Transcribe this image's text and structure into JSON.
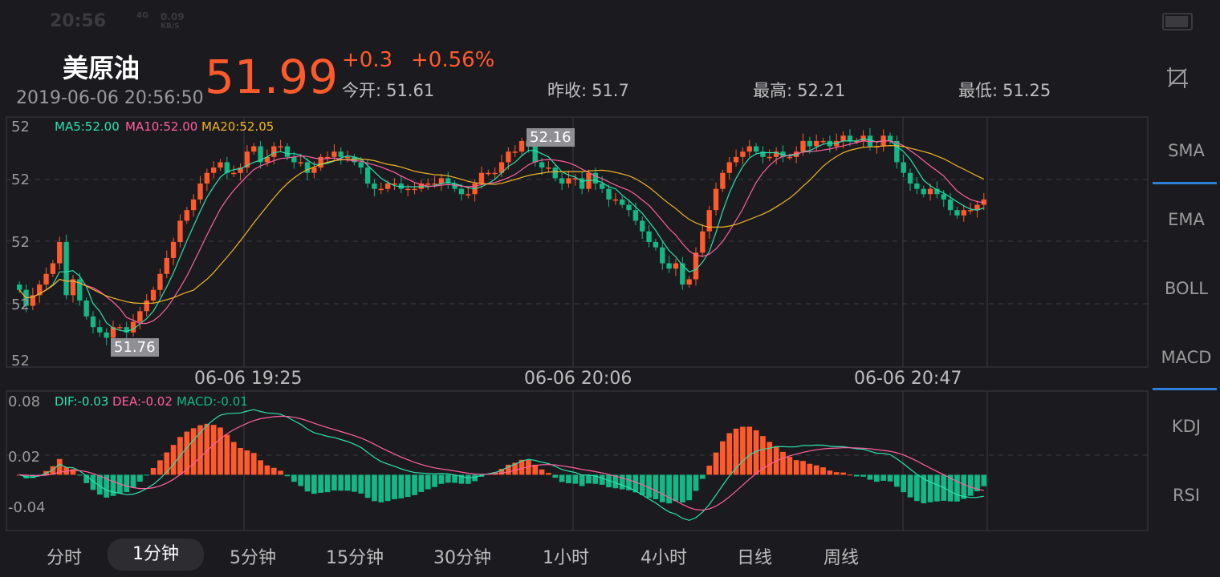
{
  "status_bar": {
    "time": "20:56",
    "net_label": "4G",
    "speed": "0.09",
    "speed_unit": "KB/S"
  },
  "header": {
    "title": "美原油",
    "datetime": "2019-06-06 20:56:50",
    "price": "51.99",
    "change": "+0.3",
    "change_pct": "+0.56%",
    "stats": [
      {
        "label": "今开:",
        "value": "51.61"
      },
      {
        "label": "昨收:",
        "value": "51.7"
      },
      {
        "label": "最高:",
        "value": "52.21"
      },
      {
        "label": "最低:",
        "value": "51.25"
      }
    ]
  },
  "indicators": [
    "SMA",
    "EMA",
    "BOLL",
    "MACD",
    "KDJ",
    "RSI"
  ],
  "active_indicators": [
    "SMA",
    "MACD"
  ],
  "tabs": [
    "分时",
    "1分钟",
    "5分钟",
    "15分钟",
    "30分钟",
    "1小时",
    "4小时",
    "日线",
    "周线"
  ],
  "active_tab": "1分钟",
  "colors": {
    "up": "#ff5a2c",
    "down": "#12b886",
    "ma5": "#2de0b0",
    "ma10": "#ff5fa2",
    "ma20": "#f0b428",
    "accent": "#2e7fd8"
  },
  "chart_data": [
    {
      "type": "candlestick",
      "legend": {
        "ma5": "MA5:52.00",
        "ma10": "MA10:52.00",
        "ma20": "MA20:52.05"
      },
      "y_tick_labels": [
        "52",
        "52",
        "52",
        "52",
        "52"
      ],
      "x_tick_labels": [
        "06-06 19:25",
        "06-06 20:06",
        "06-06 20:47"
      ],
      "max_label": "52.16",
      "min_label": "51.76",
      "close": [
        51.87,
        51.84,
        51.86,
        51.88,
        51.9,
        51.92,
        51.96,
        51.86,
        51.89,
        51.85,
        51.82,
        51.8,
        51.79,
        51.78,
        51.8,
        51.8,
        51.79,
        51.81,
        51.83,
        51.85,
        51.87,
        51.9,
        51.93,
        51.96,
        52.0,
        52.02,
        52.04,
        52.07,
        52.09,
        52.1,
        52.11,
        52.09,
        52.09,
        52.1,
        52.13,
        52.14,
        52.11,
        52.12,
        52.14,
        52.14,
        52.12,
        52.11,
        52.11,
        52.09,
        52.1,
        52.12,
        52.12,
        52.13,
        52.12,
        52.12,
        52.11,
        52.1,
        52.07,
        52.06,
        52.06,
        52.07,
        52.07,
        52.06,
        52.06,
        52.06,
        52.07,
        52.07,
        52.07,
        52.08,
        52.07,
        52.06,
        52.05,
        52.05,
        52.07,
        52.09,
        52.09,
        52.09,
        52.11,
        52.13,
        52.13,
        52.15,
        52.14,
        52.11,
        52.1,
        52.1,
        52.08,
        52.07,
        52.08,
        52.08,
        52.06,
        52.09,
        52.07,
        52.06,
        52.04,
        52.04,
        52.03,
        52.02,
        52.0,
        51.98,
        51.96,
        51.95,
        51.92,
        51.91,
        51.92,
        51.88,
        51.89,
        51.94,
        51.98,
        52.02,
        52.06,
        52.09,
        52.11,
        52.12,
        52.13,
        52.14,
        52.13,
        52.12,
        52.12,
        52.13,
        52.12,
        52.12,
        52.13,
        52.15,
        52.14,
        52.15,
        52.15,
        52.14,
        52.15,
        52.16,
        52.15,
        52.15,
        52.16,
        52.14,
        52.14,
        52.16,
        52.15,
        52.11,
        52.09,
        52.07,
        52.06,
        52.05,
        52.06,
        52.05,
        52.04,
        52.02,
        52.01,
        52.02,
        52.02,
        52.03,
        52.04
      ]
    },
    {
      "type": "bar",
      "series_labels": {
        "dif": "DIF:-0.03",
        "dea": "DEA:-0.02",
        "macd": "MACD:-0.01"
      },
      "y_tick_labels": [
        "0.08",
        "0.02",
        "-0.04"
      ],
      "ylim": [
        -0.06,
        0.09
      ]
    }
  ]
}
